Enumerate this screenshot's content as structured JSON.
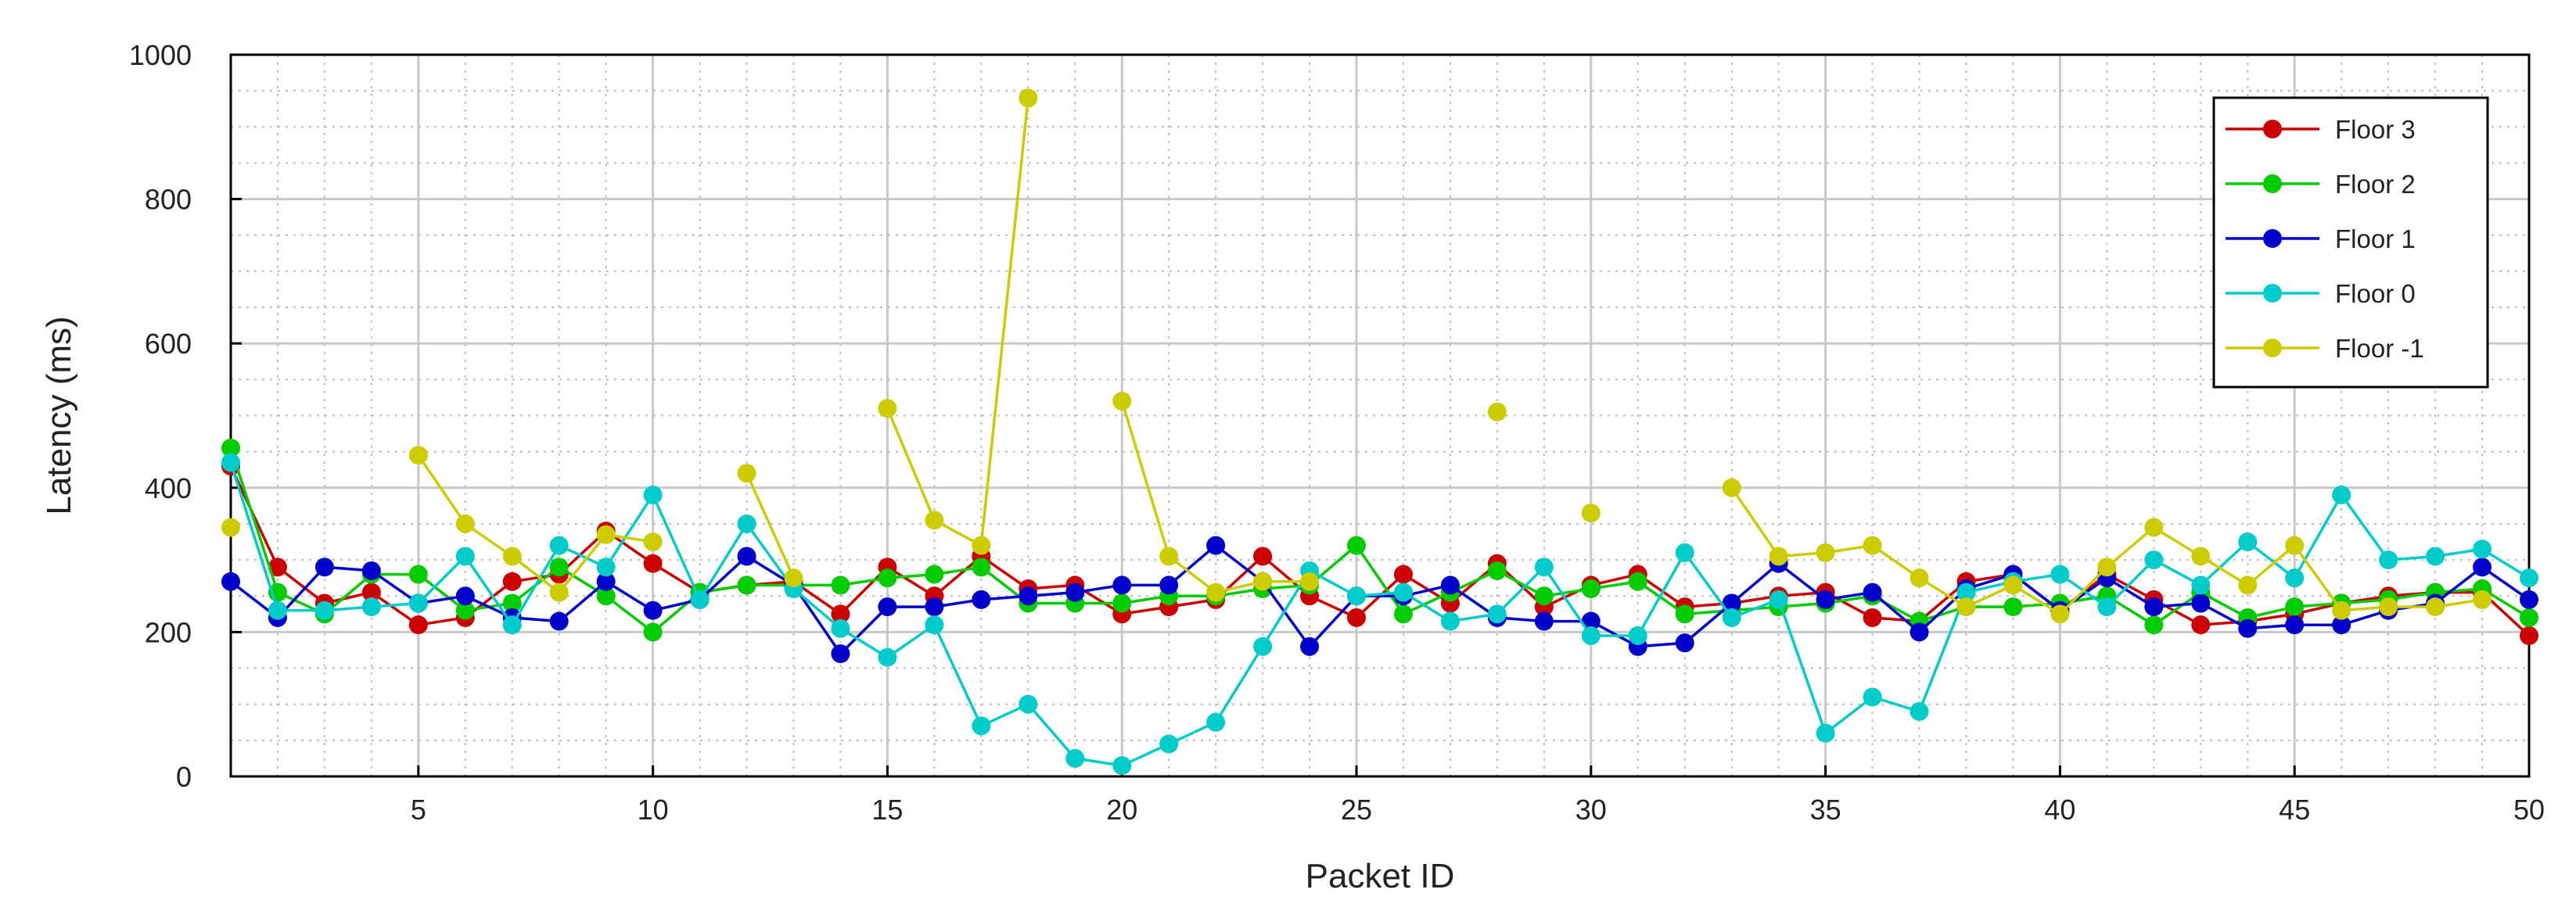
{
  "chart_data": {
    "type": "line",
    "title": "",
    "xlabel": "Packet ID",
    "ylabel": "Latency (ms)",
    "xlim": [
      1,
      50
    ],
    "ylim": [
      0,
      1000
    ],
    "xticks": [
      5,
      10,
      15,
      20,
      25,
      30,
      35,
      40,
      45,
      50
    ],
    "yticks": [
      0,
      200,
      400,
      600,
      800,
      1000
    ],
    "grid": true,
    "legend_position": "top-right",
    "x": [
      1,
      2,
      3,
      4,
      5,
      6,
      7,
      8,
      9,
      10,
      11,
      12,
      13,
      14,
      15,
      16,
      17,
      18,
      19,
      20,
      21,
      22,
      23,
      24,
      25,
      26,
      27,
      28,
      29,
      30,
      31,
      32,
      33,
      34,
      35,
      36,
      37,
      38,
      39,
      40,
      41,
      42,
      43,
      44,
      45,
      46,
      47,
      48,
      49,
      50
    ],
    "series": [
      {
        "name": "Floor 3",
        "color": "#cc0000",
        "values": [
          430,
          290,
          240,
          255,
          210,
          220,
          270,
          280,
          340,
          295,
          255,
          265,
          270,
          225,
          290,
          250,
          305,
          260,
          265,
          225,
          235,
          245,
          305,
          250,
          220,
          280,
          240,
          295,
          235,
          265,
          280,
          235,
          240,
          250,
          255,
          220,
          215,
          270,
          280,
          230,
          280,
          245,
          210,
          215,
          225,
          240,
          250,
          255,
          255,
          195
        ]
      },
      {
        "name": "Floor 2",
        "color": "#00cc00",
        "values": [
          455,
          255,
          225,
          280,
          280,
          230,
          240,
          290,
          250,
          200,
          255,
          265,
          265,
          265,
          275,
          280,
          290,
          240,
          240,
          240,
          250,
          250,
          260,
          265,
          320,
          225,
          255,
          285,
          250,
          260,
          270,
          225,
          230,
          235,
          240,
          250,
          215,
          235,
          235,
          240,
          250,
          210,
          255,
          220,
          235,
          240,
          245,
          255,
          260,
          220
        ]
      },
      {
        "name": "Floor 1",
        "color": "#0000cc",
        "values": [
          270,
          220,
          290,
          285,
          240,
          250,
          220,
          215,
          270,
          230,
          245,
          305,
          265,
          170,
          235,
          235,
          245,
          250,
          255,
          265,
          265,
          320,
          270,
          180,
          250,
          250,
          265,
          220,
          215,
          215,
          180,
          185,
          240,
          295,
          245,
          255,
          200,
          260,
          280,
          230,
          275,
          235,
          240,
          205,
          210,
          210,
          230,
          240,
          290,
          245
        ]
      },
      {
        "name": "Floor 0",
        "color": "#00cccc",
        "values": [
          435,
          230,
          230,
          235,
          240,
          305,
          210,
          320,
          290,
          390,
          245,
          350,
          260,
          205,
          165,
          210,
          70,
          100,
          25,
          15,
          45,
          75,
          180,
          285,
          250,
          255,
          215,
          225,
          290,
          195,
          195,
          310,
          220,
          245,
          60,
          110,
          90,
          255,
          270,
          280,
          235,
          300,
          265,
          325,
          275,
          390,
          300,
          305,
          315,
          275
        ]
      },
      {
        "name": "Floor -1",
        "color": "#cccc00",
        "values": [
          345,
          null,
          null,
          null,
          445,
          350,
          305,
          255,
          335,
          325,
          null,
          420,
          275,
          null,
          510,
          355,
          320,
          940,
          null,
          520,
          305,
          255,
          270,
          270,
          null,
          null,
          null,
          505,
          null,
          365,
          null,
          null,
          400,
          305,
          310,
          320,
          275,
          235,
          265,
          225,
          290,
          345,
          305,
          265,
          320,
          230,
          235,
          235,
          245,
          null
        ]
      }
    ]
  }
}
